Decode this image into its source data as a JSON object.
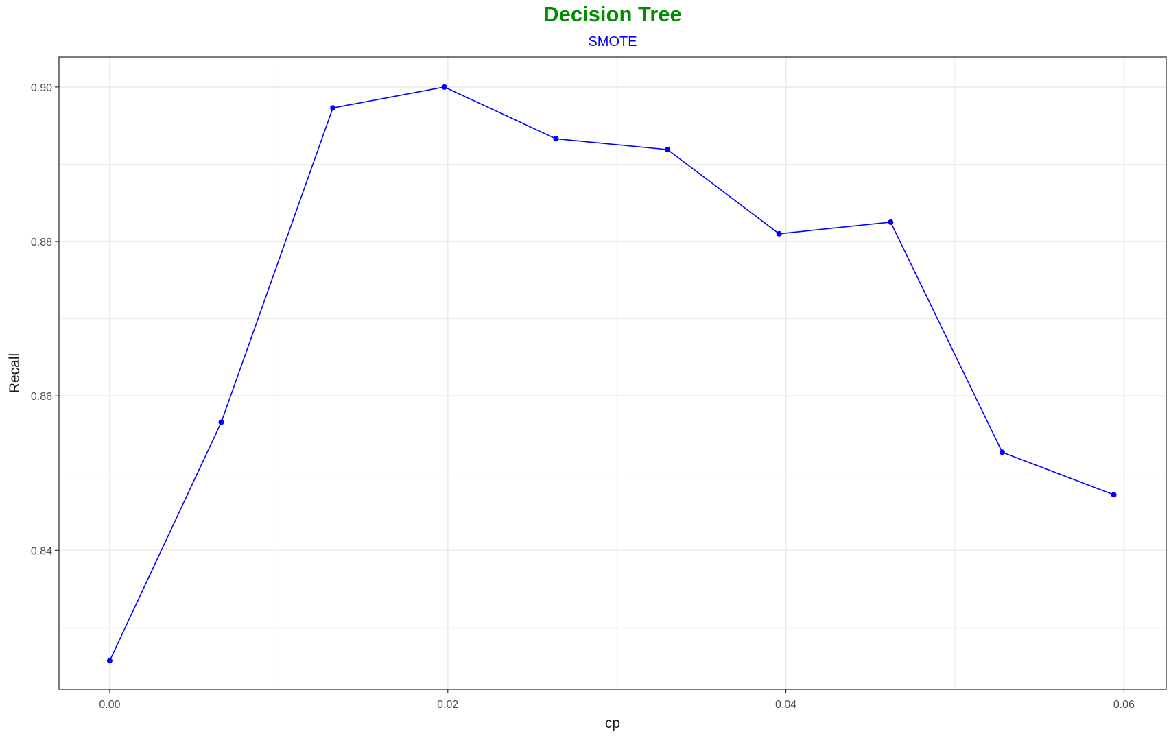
{
  "chart_data": {
    "type": "line",
    "title": "Decision Tree",
    "subtitle": "SMOTE",
    "xlabel": "cp",
    "ylabel": "Recall",
    "x": [
      0.0,
      0.0066,
      0.0132,
      0.0198,
      0.0264,
      0.033,
      0.0396,
      0.0462,
      0.0528,
      0.0594
    ],
    "series": [
      {
        "values": [
          0.8257,
          0.8566,
          0.8973,
          0.9,
          0.8933,
          0.8919,
          0.881,
          0.8825,
          0.8527,
          0.8472
        ]
      }
    ],
    "xlim": [
      -0.003,
      0.0625
    ],
    "ylim": [
      0.822,
      0.9039
    ],
    "x_ticks": [
      0.0,
      0.02,
      0.04,
      0.06
    ],
    "x_tick_labels": [
      "0.00",
      "0.02",
      "0.04",
      "0.06"
    ],
    "y_ticks": [
      0.84,
      0.86,
      0.88,
      0.9
    ],
    "y_tick_labels": [
      "0.84",
      "0.86",
      "0.88",
      "0.90"
    ],
    "x_minor_ticks": [
      0.01,
      0.03,
      0.05
    ],
    "y_minor_ticks": [
      0.83,
      0.85,
      0.87,
      0.89
    ],
    "grid": true,
    "colors": {
      "title": "#008b00",
      "subtitle": "#0000ff",
      "line": "#0000ff",
      "grid": "#ebebeb",
      "panel_border": "#333333"
    }
  }
}
